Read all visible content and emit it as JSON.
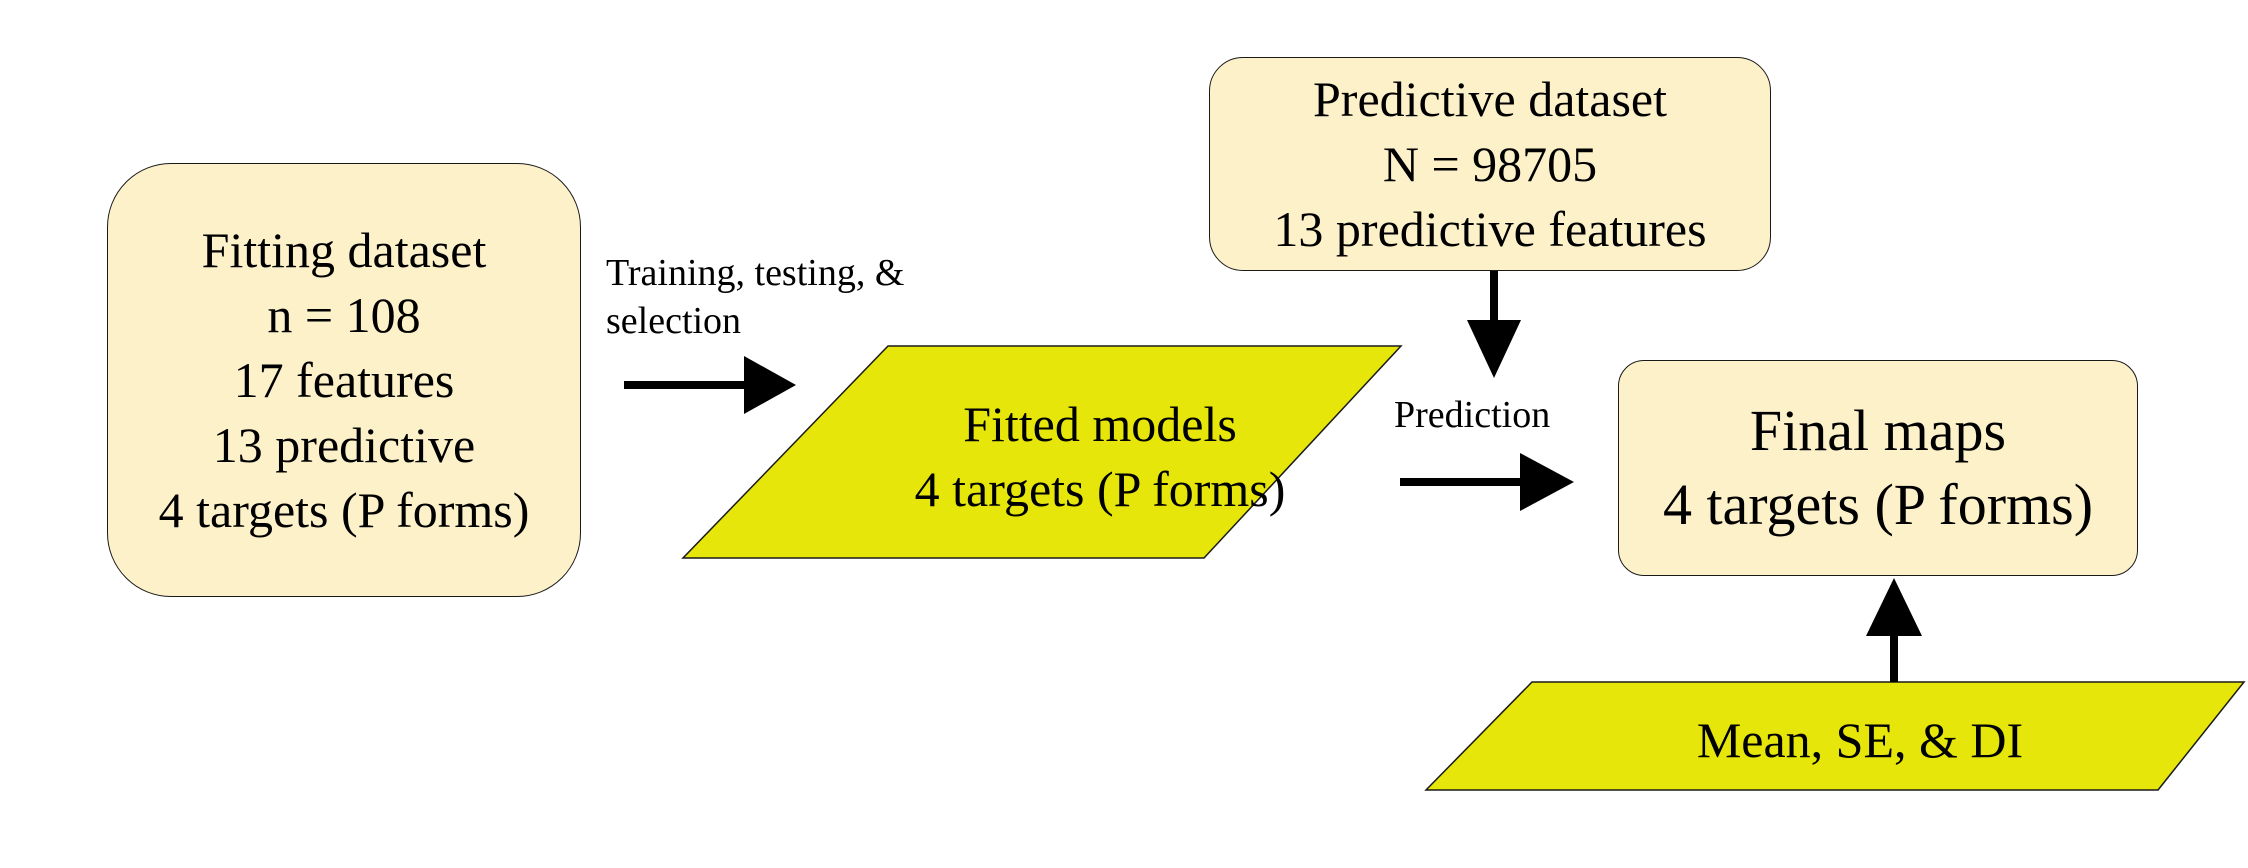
{
  "colors": {
    "box_fill": "#fcf1c9",
    "parallelogram_fill": "#e6e60a",
    "stroke": "#1a1a1a",
    "arrow": "#000000"
  },
  "fitting_dataset": {
    "lines": [
      "Fitting dataset",
      "n = 108",
      "17 features",
      "13 predictive",
      "4 targets (P forms)"
    ]
  },
  "predictive_dataset": {
    "lines": [
      "Predictive dataset",
      "N = 98705",
      "13 predictive features"
    ]
  },
  "fitted_models": {
    "lines": [
      "Fitted models",
      "4 targets (P forms)"
    ]
  },
  "final_maps": {
    "lines": [
      "Final maps",
      "4 targets (P forms)"
    ]
  },
  "uncertainty": {
    "label": "Mean, SE, & DI"
  },
  "edges": {
    "training_label_lines": [
      "Training, testing, &",
      "selection"
    ],
    "prediction_label": "Prediction"
  }
}
